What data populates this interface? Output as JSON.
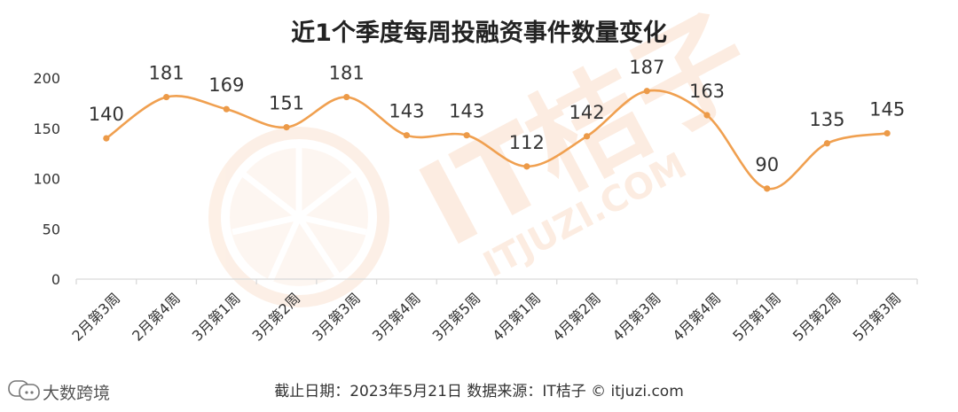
{
  "chart_data": {
    "type": "line",
    "title": "近1个季度每周投融资事件数量变化",
    "categories": [
      "2月第3周",
      "2月第4周",
      "3月第1周",
      "3月第2周",
      "3月第3周",
      "3月第4周",
      "3月第5周",
      "4月第1周",
      "4月第2周",
      "4月第3周",
      "4月第4周",
      "5月第1周",
      "5月第2周",
      "5月第3周"
    ],
    "series": [
      {
        "values": [
          140,
          181,
          169,
          151,
          181,
          143,
          143,
          112,
          142,
          187,
          163,
          90,
          135,
          145
        ]
      }
    ],
    "ylim": [
      0,
      200
    ],
    "yticks": [
      0,
      50,
      100,
      150,
      200
    ],
    "grid": false,
    "xlabel": "",
    "ylabel": ""
  },
  "colors": {
    "line": "#F0A050",
    "marker": "#EC9A48",
    "axis": "#D9D9D9",
    "watermark": "#FBE3D2"
  },
  "footer": "截止日期：2023年5月21日    数据来源：IT桔子 © itjuzi.com",
  "watermark": {
    "brand_cn": "IT桔子",
    "brand_url": "ITJUZI.COM"
  },
  "corner_brand": {
    "text": "大数跨境",
    "icon": "chat-bubble-icon"
  }
}
